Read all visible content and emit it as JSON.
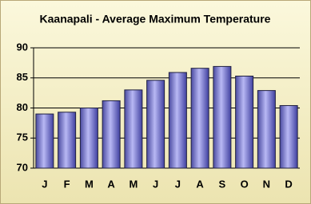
{
  "chart_data": {
    "type": "bar",
    "title": "Kaanapali - Average Maximum Temperature",
    "categories": [
      "J",
      "F",
      "M",
      "A",
      "M",
      "J",
      "J",
      "A",
      "S",
      "O",
      "N",
      "D"
    ],
    "values": [
      79,
      79.3,
      80,
      81.2,
      83,
      84.6,
      85.9,
      86.6,
      86.9,
      85.3,
      82.9,
      80.4
    ],
    "color": "#7070d0",
    "ylim": [
      70,
      90
    ],
    "yticks": [
      70,
      75,
      80,
      85,
      90
    ],
    "grid": true
  }
}
